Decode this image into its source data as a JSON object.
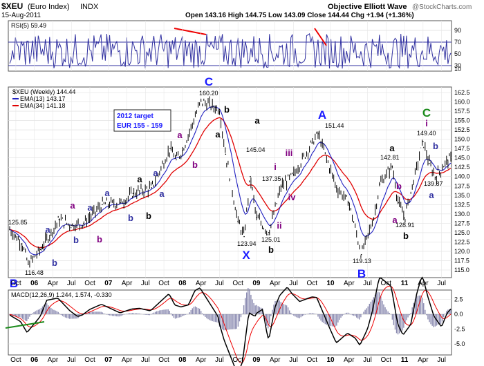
{
  "header": {
    "symbol": "$XEU",
    "name": "(Euro Index)",
    "exchange": "INDX",
    "date": "15-Aug-2011",
    "credit": "Objective Elliott Wave",
    "watermark": "@StockCharts.com",
    "quote": "Open 143.16  High 144.75  Low 143.09  Close 144.44  Chg +1.94 (+1.36%)"
  },
  "rsi": {
    "label": "RSI(5) 59.49",
    "levels": [
      "90",
      "70",
      "50",
      "30",
      "10"
    ]
  },
  "price": {
    "legend_main": "$XEU (Weekly) 144.44",
    "legend_ema13": "EMA(13) 143.17",
    "legend_ema34": "EMA(34) 141.18",
    "target_line1": "2012 target",
    "target_line2": "EUR 155 - 159",
    "ticks": [
      "162.5",
      "160.0",
      "157.5",
      "155.0",
      "152.5",
      "150.0",
      "147.5",
      "145.0",
      "142.5",
      "140.0",
      "137.5",
      "135.0",
      "132.5",
      "130.0",
      "127.5",
      "125.0",
      "122.5",
      "120.0",
      "117.5",
      "115.0"
    ]
  },
  "macd": {
    "label": "MACD(12,26,9) 1.244, 1.574, -0.330",
    "ticks": [
      "2.5",
      "0.0",
      "-2.5",
      "-5.0"
    ]
  },
  "x_axis": [
    "Oct",
    "06",
    "Apr",
    "Jul",
    "Oct",
    "07",
    "Apr",
    "Jul",
    "Oct",
    "08",
    "Apr",
    "Jul",
    "Oct",
    "09",
    "Apr",
    "Jul",
    "Oct",
    "10",
    "Apr",
    "Jul",
    "Oct",
    "11",
    "Apr",
    "Jul"
  ],
  "wave_labels": [
    {
      "text": "a",
      "color": "#3030a0"
    },
    {
      "text": "b",
      "color": "#3030a0"
    },
    {
      "text": "a",
      "color": "#3030a0"
    },
    {
      "text": "b",
      "color": "#3030a0"
    },
    {
      "text": "a",
      "color": "#800080"
    },
    {
      "text": "b",
      "color": "#800080"
    },
    {
      "text": "a",
      "color": "#3030a0"
    },
    {
      "text": "b",
      "color": "#3030a0"
    },
    {
      "text": "a",
      "color": "#3030a0"
    },
    {
      "text": "a",
      "color": "#3030a0"
    },
    {
      "text": "a",
      "color": "#000000"
    },
    {
      "text": "b",
      "color": "#000000"
    },
    {
      "text": "a",
      "color": "#800080"
    },
    {
      "text": "b",
      "color": "#800080"
    },
    {
      "text": "a",
      "color": "#000000"
    },
    {
      "text": "b",
      "color": "#000000"
    },
    {
      "text": "a",
      "color": "#000000"
    },
    {
      "text": "i",
      "color": "#800080"
    },
    {
      "text": "iii",
      "color": "#800080"
    },
    {
      "text": "iv",
      "color": "#800080"
    },
    {
      "text": "ii",
      "color": "#800080"
    },
    {
      "text": "b",
      "color": "#000000"
    },
    {
      "text": "a",
      "color": "#000000"
    },
    {
      "text": "b",
      "color": "#800080"
    },
    {
      "text": "a",
      "color": "#800080"
    },
    {
      "text": "b",
      "color": "#000000"
    },
    {
      "text": "i",
      "color": "#800080"
    },
    {
      "text": "b",
      "color": "#3030a0"
    },
    {
      "text": "a",
      "color": "#3030a0"
    }
  ],
  "wave_big": [
    {
      "text": "C",
      "color": "#1a1aff"
    },
    {
      "text": "X",
      "color": "#1a1aff"
    },
    {
      "text": "A",
      "color": "#1a1aff"
    },
    {
      "text": "B",
      "color": "#1a1aff"
    },
    {
      "text": "B",
      "color": "#1a1aff"
    },
    {
      "text": "C",
      "color": "#1a8a1a"
    }
  ],
  "price_labels": [
    "125.85",
    "116.48",
    "160.20",
    "145.04",
    "137.35",
    "123.94",
    "125.01",
    "151.44",
    "119.13",
    "142.81",
    "128.91",
    "149.40",
    "139.87"
  ],
  "chart_data": {
    "type": "line",
    "title": "$XEU (Euro Index) Weekly",
    "series": [
      {
        "name": "$XEU (Weekly)",
        "x": [
          "2005-09",
          "2005-11",
          "2005-12",
          "2006-02",
          "2006-05",
          "2006-07",
          "2006-09",
          "2006-12",
          "2007-03",
          "2007-05",
          "2007-08",
          "2007-11",
          "2007-12",
          "2008-01",
          "2008-04",
          "2008-07",
          "2008-08",
          "2008-10",
          "2008-11",
          "2008-12",
          "2009-01",
          "2009-03",
          "2009-05",
          "2009-07",
          "2009-10",
          "2009-11",
          "2010-02",
          "2010-04",
          "2010-06",
          "2010-08",
          "2010-09",
          "2010-11",
          "2010-12",
          "2011-01",
          "2011-04",
          "2011-05",
          "2011-06",
          "2011-08"
        ],
        "values": [
          125.85,
          122.0,
          116.48,
          120.5,
          128.5,
          127.0,
          127.5,
          132.5,
          133.0,
          135.5,
          137.0,
          147.5,
          144.5,
          147.0,
          160.2,
          158.0,
          146.0,
          128.0,
          123.94,
          140.0,
          129.0,
          125.01,
          137.35,
          140.5,
          149.0,
          151.44,
          137.0,
          133.0,
          119.13,
          129.0,
          138.0,
          142.81,
          133.0,
          128.91,
          149.4,
          143.5,
          139.87,
          144.44
        ]
      },
      {
        "name": "EMA(13)",
        "value": 143.17
      },
      {
        "name": "EMA(34)",
        "value": 141.18
      }
    ],
    "xlabel": "",
    "ylabel": "",
    "ylim": [
      115.0,
      162.5
    ],
    "indicators": {
      "RSI(5)": 59.49,
      "MACD": 1.244,
      "MACD_signal": 1.574,
      "MACD_hist": -0.33
    }
  }
}
